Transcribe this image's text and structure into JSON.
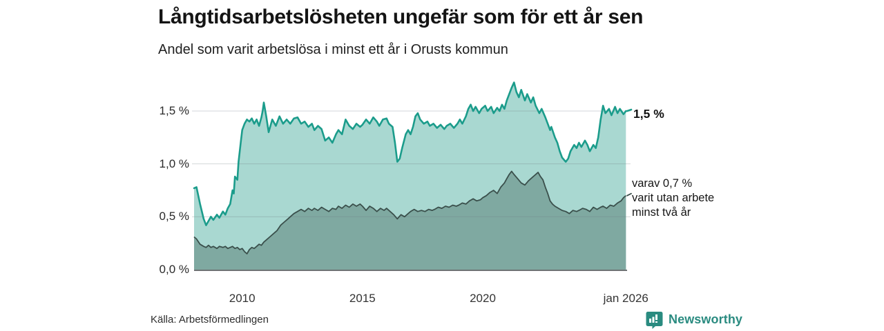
{
  "header": {
    "title": "Långtidsarbetslösheten ungefär som för ett år sen",
    "subtitle": "Andel som varit arbetslösa i minst ett år i Orusts kommun"
  },
  "footer": {
    "source": "Källa: Arbetsförmedlingen",
    "brand": "Newsworthy"
  },
  "colors": {
    "title_text": "#141414",
    "axis_text": "#333333",
    "gridline": "rgba(110,120,125,0.30)",
    "baseline": "#3f4446",
    "series1_line": "#1b9c8b",
    "series1_fill": "#a9d8d1",
    "series2_line": "#3a4f4b",
    "series2_fill": "#7fa9a1",
    "brand_teal": "#2a8b80"
  },
  "chart_data": {
    "type": "area",
    "title": "Långtidsarbetslösheten ungefär som för ett år sen",
    "subtitle": "Andel som varit arbetslösa i minst ett år i Orusts kommun",
    "xlabel": "",
    "ylabel": "",
    "x_domain": [
      2008,
      2026
    ],
    "ylim": [
      0,
      1.8
    ],
    "grid": "horizontal",
    "yticks": [
      {
        "v": 0.0,
        "label": "0,0 %"
      },
      {
        "v": 0.5,
        "label": "0,5 %"
      },
      {
        "v": 1.0,
        "label": "1,0 %"
      },
      {
        "v": 1.5,
        "label": "1,5 %"
      }
    ],
    "xticks": [
      {
        "v": 2010,
        "label": "2010"
      },
      {
        "v": 2015,
        "label": "2015"
      },
      {
        "v": 2020,
        "label": "2020"
      },
      {
        "v": 2025.95,
        "label": "jan 2026"
      }
    ],
    "series": [
      {
        "name": "Arbetslösa minst ett år",
        "end_label": "1,5 %",
        "end_value": 1.5,
        "points": [
          [
            2008.0,
            0.77
          ],
          [
            2008.1,
            0.78
          ],
          [
            2008.25,
            0.62
          ],
          [
            2008.4,
            0.48
          ],
          [
            2008.5,
            0.42
          ],
          [
            2008.6,
            0.46
          ],
          [
            2008.7,
            0.5
          ],
          [
            2008.8,
            0.47
          ],
          [
            2008.95,
            0.52
          ],
          [
            2009.05,
            0.49
          ],
          [
            2009.2,
            0.55
          ],
          [
            2009.3,
            0.52
          ],
          [
            2009.4,
            0.58
          ],
          [
            2009.5,
            0.62
          ],
          [
            2009.6,
            0.75
          ],
          [
            2009.65,
            0.72
          ],
          [
            2009.7,
            0.88
          ],
          [
            2009.8,
            0.85
          ],
          [
            2009.85,
            1.02
          ],
          [
            2009.95,
            1.22
          ],
          [
            2010.0,
            1.32
          ],
          [
            2010.1,
            1.38
          ],
          [
            2010.2,
            1.42
          ],
          [
            2010.3,
            1.4
          ],
          [
            2010.4,
            1.43
          ],
          [
            2010.5,
            1.38
          ],
          [
            2010.6,
            1.42
          ],
          [
            2010.7,
            1.36
          ],
          [
            2010.8,
            1.44
          ],
          [
            2010.85,
            1.5
          ],
          [
            2010.9,
            1.58
          ],
          [
            2011.0,
            1.45
          ],
          [
            2011.1,
            1.3
          ],
          [
            2011.25,
            1.42
          ],
          [
            2011.4,
            1.36
          ],
          [
            2011.55,
            1.45
          ],
          [
            2011.7,
            1.38
          ],
          [
            2011.85,
            1.42
          ],
          [
            2012.0,
            1.38
          ],
          [
            2012.15,
            1.43
          ],
          [
            2012.3,
            1.44
          ],
          [
            2012.45,
            1.38
          ],
          [
            2012.6,
            1.4
          ],
          [
            2012.75,
            1.35
          ],
          [
            2012.9,
            1.38
          ],
          [
            2013.0,
            1.32
          ],
          [
            2013.15,
            1.36
          ],
          [
            2013.3,
            1.33
          ],
          [
            2013.45,
            1.22
          ],
          [
            2013.6,
            1.25
          ],
          [
            2013.75,
            1.2
          ],
          [
            2013.9,
            1.28
          ],
          [
            2014.0,
            1.32
          ],
          [
            2014.15,
            1.28
          ],
          [
            2014.3,
            1.42
          ],
          [
            2014.45,
            1.36
          ],
          [
            2014.6,
            1.33
          ],
          [
            2014.75,
            1.38
          ],
          [
            2014.9,
            1.35
          ],
          [
            2015.0,
            1.37
          ],
          [
            2015.15,
            1.42
          ],
          [
            2015.3,
            1.38
          ],
          [
            2015.45,
            1.44
          ],
          [
            2015.6,
            1.4
          ],
          [
            2015.7,
            1.36
          ],
          [
            2015.85,
            1.42
          ],
          [
            2016.0,
            1.43
          ],
          [
            2016.1,
            1.38
          ],
          [
            2016.25,
            1.35
          ],
          [
            2016.35,
            1.2
          ],
          [
            2016.45,
            1.02
          ],
          [
            2016.55,
            1.05
          ],
          [
            2016.65,
            1.15
          ],
          [
            2016.8,
            1.28
          ],
          [
            2016.9,
            1.32
          ],
          [
            2017.0,
            1.28
          ],
          [
            2017.1,
            1.35
          ],
          [
            2017.2,
            1.45
          ],
          [
            2017.3,
            1.48
          ],
          [
            2017.4,
            1.42
          ],
          [
            2017.55,
            1.38
          ],
          [
            2017.7,
            1.4
          ],
          [
            2017.8,
            1.36
          ],
          [
            2017.95,
            1.38
          ],
          [
            2018.1,
            1.34
          ],
          [
            2018.25,
            1.37
          ],
          [
            2018.4,
            1.33
          ],
          [
            2018.5,
            1.36
          ],
          [
            2018.65,
            1.38
          ],
          [
            2018.8,
            1.34
          ],
          [
            2018.95,
            1.38
          ],
          [
            2019.05,
            1.42
          ],
          [
            2019.15,
            1.38
          ],
          [
            2019.3,
            1.45
          ],
          [
            2019.4,
            1.52
          ],
          [
            2019.5,
            1.56
          ],
          [
            2019.6,
            1.5
          ],
          [
            2019.7,
            1.54
          ],
          [
            2019.85,
            1.48
          ],
          [
            2019.95,
            1.52
          ],
          [
            2020.1,
            1.55
          ],
          [
            2020.2,
            1.5
          ],
          [
            2020.35,
            1.54
          ],
          [
            2020.45,
            1.48
          ],
          [
            2020.6,
            1.53
          ],
          [
            2020.7,
            1.5
          ],
          [
            2020.8,
            1.56
          ],
          [
            2020.9,
            1.52
          ],
          [
            2021.0,
            1.6
          ],
          [
            2021.1,
            1.66
          ],
          [
            2021.2,
            1.72
          ],
          [
            2021.3,
            1.77
          ],
          [
            2021.4,
            1.68
          ],
          [
            2021.5,
            1.63
          ],
          [
            2021.6,
            1.7
          ],
          [
            2021.75,
            1.6
          ],
          [
            2021.85,
            1.66
          ],
          [
            2022.0,
            1.58
          ],
          [
            2022.1,
            1.63
          ],
          [
            2022.2,
            1.55
          ],
          [
            2022.35,
            1.48
          ],
          [
            2022.45,
            1.52
          ],
          [
            2022.6,
            1.44
          ],
          [
            2022.7,
            1.38
          ],
          [
            2022.8,
            1.32
          ],
          [
            2022.85,
            1.35
          ],
          [
            2023.0,
            1.25
          ],
          [
            2023.1,
            1.2
          ],
          [
            2023.2,
            1.12
          ],
          [
            2023.3,
            1.06
          ],
          [
            2023.45,
            1.02
          ],
          [
            2023.55,
            1.05
          ],
          [
            2023.65,
            1.12
          ],
          [
            2023.8,
            1.18
          ],
          [
            2023.9,
            1.15
          ],
          [
            2024.0,
            1.2
          ],
          [
            2024.1,
            1.16
          ],
          [
            2024.25,
            1.22
          ],
          [
            2024.35,
            1.18
          ],
          [
            2024.45,
            1.12
          ],
          [
            2024.6,
            1.18
          ],
          [
            2024.7,
            1.15
          ],
          [
            2024.8,
            1.25
          ],
          [
            2024.9,
            1.42
          ],
          [
            2025.0,
            1.55
          ],
          [
            2025.1,
            1.48
          ],
          [
            2025.25,
            1.52
          ],
          [
            2025.35,
            1.46
          ],
          [
            2025.5,
            1.54
          ],
          [
            2025.6,
            1.48
          ],
          [
            2025.7,
            1.52
          ],
          [
            2025.85,
            1.47
          ],
          [
            2025.95,
            1.5
          ]
        ]
      },
      {
        "name": "Utan arbete minst två år",
        "annotation_lines": [
          "varav 0,7 %",
          "varit utan arbete",
          "minst två år"
        ],
        "end_value": 0.7,
        "points": [
          [
            2008.0,
            0.31
          ],
          [
            2008.1,
            0.29
          ],
          [
            2008.25,
            0.24
          ],
          [
            2008.4,
            0.22
          ],
          [
            2008.5,
            0.21
          ],
          [
            2008.6,
            0.23
          ],
          [
            2008.7,
            0.21
          ],
          [
            2008.8,
            0.22
          ],
          [
            2008.95,
            0.2
          ],
          [
            2009.05,
            0.22
          ],
          [
            2009.2,
            0.21
          ],
          [
            2009.3,
            0.22
          ],
          [
            2009.4,
            0.2
          ],
          [
            2009.5,
            0.21
          ],
          [
            2009.6,
            0.22
          ],
          [
            2009.7,
            0.2
          ],
          [
            2009.8,
            0.21
          ],
          [
            2009.9,
            0.19
          ],
          [
            2010.0,
            0.2
          ],
          [
            2010.1,
            0.17
          ],
          [
            2010.2,
            0.15
          ],
          [
            2010.3,
            0.19
          ],
          [
            2010.4,
            0.21
          ],
          [
            2010.5,
            0.2
          ],
          [
            2010.6,
            0.22
          ],
          [
            2010.7,
            0.24
          ],
          [
            2010.8,
            0.23
          ],
          [
            2010.9,
            0.26
          ],
          [
            2011.0,
            0.28
          ],
          [
            2011.15,
            0.31
          ],
          [
            2011.3,
            0.34
          ],
          [
            2011.45,
            0.37
          ],
          [
            2011.6,
            0.42
          ],
          [
            2011.75,
            0.45
          ],
          [
            2011.9,
            0.48
          ],
          [
            2012.0,
            0.5
          ],
          [
            2012.15,
            0.53
          ],
          [
            2012.3,
            0.55
          ],
          [
            2012.45,
            0.57
          ],
          [
            2012.6,
            0.55
          ],
          [
            2012.75,
            0.58
          ],
          [
            2012.9,
            0.56
          ],
          [
            2013.0,
            0.58
          ],
          [
            2013.15,
            0.56
          ],
          [
            2013.3,
            0.59
          ],
          [
            2013.45,
            0.57
          ],
          [
            2013.6,
            0.55
          ],
          [
            2013.75,
            0.58
          ],
          [
            2013.9,
            0.57
          ],
          [
            2014.0,
            0.6
          ],
          [
            2014.15,
            0.58
          ],
          [
            2014.3,
            0.61
          ],
          [
            2014.45,
            0.59
          ],
          [
            2014.6,
            0.62
          ],
          [
            2014.75,
            0.6
          ],
          [
            2014.9,
            0.62
          ],
          [
            2015.0,
            0.6
          ],
          [
            2015.15,
            0.56
          ],
          [
            2015.3,
            0.6
          ],
          [
            2015.45,
            0.58
          ],
          [
            2015.6,
            0.55
          ],
          [
            2015.75,
            0.58
          ],
          [
            2015.9,
            0.56
          ],
          [
            2016.0,
            0.58
          ],
          [
            2016.15,
            0.55
          ],
          [
            2016.3,
            0.52
          ],
          [
            2016.45,
            0.48
          ],
          [
            2016.6,
            0.52
          ],
          [
            2016.75,
            0.5
          ],
          [
            2016.9,
            0.53
          ],
          [
            2017.0,
            0.55
          ],
          [
            2017.15,
            0.57
          ],
          [
            2017.3,
            0.55
          ],
          [
            2017.45,
            0.56
          ],
          [
            2017.6,
            0.55
          ],
          [
            2017.75,
            0.57
          ],
          [
            2017.9,
            0.56
          ],
          [
            2018.0,
            0.57
          ],
          [
            2018.15,
            0.59
          ],
          [
            2018.3,
            0.58
          ],
          [
            2018.45,
            0.6
          ],
          [
            2018.6,
            0.59
          ],
          [
            2018.75,
            0.61
          ],
          [
            2018.9,
            0.6
          ],
          [
            2019.0,
            0.61
          ],
          [
            2019.15,
            0.63
          ],
          [
            2019.3,
            0.62
          ],
          [
            2019.45,
            0.65
          ],
          [
            2019.6,
            0.67
          ],
          [
            2019.75,
            0.65
          ],
          [
            2019.9,
            0.66
          ],
          [
            2020.0,
            0.68
          ],
          [
            2020.15,
            0.7
          ],
          [
            2020.3,
            0.73
          ],
          [
            2020.45,
            0.75
          ],
          [
            2020.6,
            0.72
          ],
          [
            2020.75,
            0.78
          ],
          [
            2020.9,
            0.82
          ],
          [
            2021.0,
            0.86
          ],
          [
            2021.1,
            0.9
          ],
          [
            2021.2,
            0.93
          ],
          [
            2021.3,
            0.9
          ],
          [
            2021.45,
            0.86
          ],
          [
            2021.6,
            0.82
          ],
          [
            2021.75,
            0.8
          ],
          [
            2021.9,
            0.84
          ],
          [
            2022.0,
            0.86
          ],
          [
            2022.15,
            0.89
          ],
          [
            2022.3,
            0.92
          ],
          [
            2022.4,
            0.88
          ],
          [
            2022.5,
            0.85
          ],
          [
            2022.6,
            0.78
          ],
          [
            2022.7,
            0.72
          ],
          [
            2022.8,
            0.65
          ],
          [
            2022.9,
            0.62
          ],
          [
            2023.0,
            0.6
          ],
          [
            2023.15,
            0.58
          ],
          [
            2023.3,
            0.56
          ],
          [
            2023.45,
            0.55
          ],
          [
            2023.6,
            0.53
          ],
          [
            2023.75,
            0.56
          ],
          [
            2023.9,
            0.55
          ],
          [
            2024.0,
            0.56
          ],
          [
            2024.15,
            0.58
          ],
          [
            2024.3,
            0.57
          ],
          [
            2024.45,
            0.55
          ],
          [
            2024.6,
            0.59
          ],
          [
            2024.75,
            0.57
          ],
          [
            2024.9,
            0.59
          ],
          [
            2025.0,
            0.6
          ],
          [
            2025.15,
            0.58
          ],
          [
            2025.3,
            0.61
          ],
          [
            2025.45,
            0.6
          ],
          [
            2025.6,
            0.63
          ],
          [
            2025.75,
            0.65
          ],
          [
            2025.85,
            0.68
          ],
          [
            2025.95,
            0.7
          ]
        ]
      }
    ],
    "legend_position": "right-annotations"
  }
}
